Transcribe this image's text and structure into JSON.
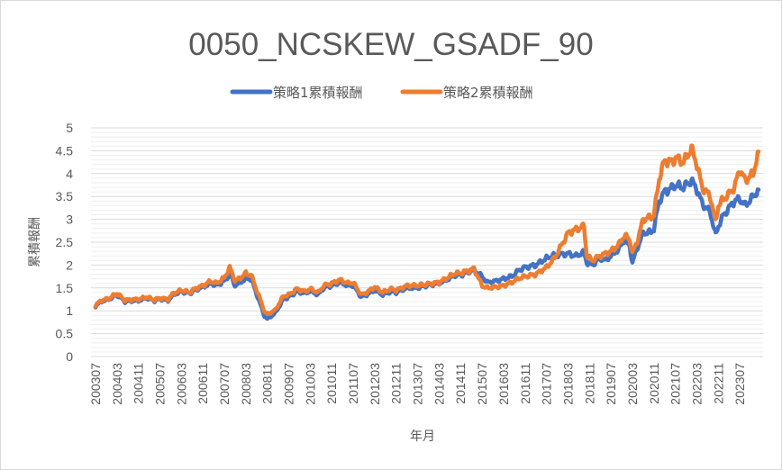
{
  "chart_data": {
    "type": "line",
    "title": "0050_NCSKEW_GSADF_90",
    "xlabel": "年月",
    "ylabel": "累積報酬",
    "ylim": [
      0,
      5
    ],
    "yticks": [
      "0",
      "0.5",
      "1",
      "1.5",
      "2",
      "2.5",
      "3",
      "3.5",
      "4",
      "4.5",
      "5"
    ],
    "xticks": [
      "200307",
      "200403",
      "200411",
      "200507",
      "200603",
      "200611",
      "200707",
      "200803",
      "200811",
      "200907",
      "201003",
      "201011",
      "201107",
      "201203",
      "201211",
      "201307",
      "201403",
      "201411",
      "201507",
      "201603",
      "201611",
      "201707",
      "201803",
      "201811",
      "201907",
      "202003",
      "202011",
      "202107",
      "202203",
      "202211",
      "202307"
    ],
    "x_range": [
      "200307",
      "202402"
    ],
    "grid": true,
    "legend": "top",
    "series": [
      {
        "name": "策略1累積報酬",
        "color": "#4472C4",
        "points": [
          [
            "200307",
            1.1
          ],
          [
            "200309",
            1.2
          ],
          [
            "200312",
            1.25
          ],
          [
            "200403",
            1.35
          ],
          [
            "200406",
            1.2
          ],
          [
            "200409",
            1.22
          ],
          [
            "200411",
            1.22
          ],
          [
            "200502",
            1.28
          ],
          [
            "200505",
            1.22
          ],
          [
            "200507",
            1.26
          ],
          [
            "200510",
            1.22
          ],
          [
            "200512",
            1.35
          ],
          [
            "200603",
            1.42
          ],
          [
            "200606",
            1.38
          ],
          [
            "200608",
            1.45
          ],
          [
            "200611",
            1.52
          ],
          [
            "200702",
            1.6
          ],
          [
            "200704",
            1.55
          ],
          [
            "200707",
            1.65
          ],
          [
            "200709",
            1.8
          ],
          [
            "200711",
            1.55
          ],
          [
            "200801",
            1.62
          ],
          [
            "200803",
            1.7
          ],
          [
            "200805",
            1.7
          ],
          [
            "200808",
            1.2
          ],
          [
            "200810",
            0.88
          ],
          [
            "200811",
            0.82
          ],
          [
            "200902",
            0.95
          ],
          [
            "200905",
            1.25
          ],
          [
            "200907",
            1.3
          ],
          [
            "200910",
            1.42
          ],
          [
            "201001",
            1.38
          ],
          [
            "201003",
            1.43
          ],
          [
            "201006",
            1.35
          ],
          [
            "201008",
            1.5
          ],
          [
            "201011",
            1.55
          ],
          [
            "201102",
            1.62
          ],
          [
            "201105",
            1.55
          ],
          [
            "201107",
            1.55
          ],
          [
            "201110",
            1.3
          ],
          [
            "201112",
            1.35
          ],
          [
            "201203",
            1.45
          ],
          [
            "201206",
            1.35
          ],
          [
            "201209",
            1.42
          ],
          [
            "201211",
            1.4
          ],
          [
            "201303",
            1.5
          ],
          [
            "201307",
            1.5
          ],
          [
            "201310",
            1.55
          ],
          [
            "201403",
            1.6
          ],
          [
            "201406",
            1.68
          ],
          [
            "201409",
            1.78
          ],
          [
            "201411",
            1.78
          ],
          [
            "201502",
            1.85
          ],
          [
            "201504",
            1.9
          ],
          [
            "201507",
            1.75
          ],
          [
            "201509",
            1.62
          ],
          [
            "201512",
            1.65
          ],
          [
            "201603",
            1.7
          ],
          [
            "201606",
            1.75
          ],
          [
            "201609",
            1.9
          ],
          [
            "201611",
            1.95
          ],
          [
            "201703",
            2.0
          ],
          [
            "201707",
            2.15
          ],
          [
            "201710",
            2.22
          ],
          [
            "201803",
            2.25
          ],
          [
            "201806",
            2.2
          ],
          [
            "201809",
            2.28
          ],
          [
            "201810",
            2.05
          ],
          [
            "201812",
            2.0
          ],
          [
            "201903",
            2.15
          ],
          [
            "201905",
            2.1
          ],
          [
            "201907",
            2.2
          ],
          [
            "201910",
            2.35
          ],
          [
            "201912",
            2.55
          ],
          [
            "202002",
            2.4
          ],
          [
            "202003",
            2.05
          ],
          [
            "202005",
            2.4
          ],
          [
            "202007",
            2.7
          ],
          [
            "202010",
            2.72
          ],
          [
            "202011",
            2.8
          ],
          [
            "202101",
            3.4
          ],
          [
            "202103",
            3.6
          ],
          [
            "202106",
            3.7
          ],
          [
            "202107",
            3.75
          ],
          [
            "202110",
            3.7
          ],
          [
            "202201",
            3.85
          ],
          [
            "202203",
            3.65
          ],
          [
            "202205",
            3.35
          ],
          [
            "202208",
            3.15
          ],
          [
            "202210",
            2.65
          ],
          [
            "202211",
            2.85
          ],
          [
            "202301",
            3.1
          ],
          [
            "202303",
            3.25
          ],
          [
            "202305",
            3.4
          ],
          [
            "202307",
            3.45
          ],
          [
            "202309",
            3.3
          ],
          [
            "202312",
            3.5
          ],
          [
            "202402",
            3.65
          ]
        ]
      },
      {
        "name": "策略2累積報酬",
        "color": "#ED7D31",
        "points": [
          [
            "200307",
            1.12
          ],
          [
            "200309",
            1.22
          ],
          [
            "200312",
            1.27
          ],
          [
            "200403",
            1.38
          ],
          [
            "200406",
            1.23
          ],
          [
            "200409",
            1.25
          ],
          [
            "200411",
            1.25
          ],
          [
            "200502",
            1.3
          ],
          [
            "200505",
            1.24
          ],
          [
            "200507",
            1.28
          ],
          [
            "200510",
            1.25
          ],
          [
            "200512",
            1.38
          ],
          [
            "200603",
            1.45
          ],
          [
            "200606",
            1.4
          ],
          [
            "200608",
            1.48
          ],
          [
            "200611",
            1.55
          ],
          [
            "200702",
            1.65
          ],
          [
            "200704",
            1.6
          ],
          [
            "200707",
            1.72
          ],
          [
            "200709",
            1.95
          ],
          [
            "200711",
            1.65
          ],
          [
            "200801",
            1.72
          ],
          [
            "200803",
            1.82
          ],
          [
            "200805",
            1.78
          ],
          [
            "200808",
            1.3
          ],
          [
            "200810",
            0.98
          ],
          [
            "200811",
            0.92
          ],
          [
            "200902",
            1.02
          ],
          [
            "200905",
            1.32
          ],
          [
            "200907",
            1.35
          ],
          [
            "200910",
            1.48
          ],
          [
            "201001",
            1.42
          ],
          [
            "201003",
            1.48
          ],
          [
            "201006",
            1.4
          ],
          [
            "201008",
            1.55
          ],
          [
            "201011",
            1.6
          ],
          [
            "201102",
            1.68
          ],
          [
            "201105",
            1.6
          ],
          [
            "201107",
            1.62
          ],
          [
            "201110",
            1.35
          ],
          [
            "201112",
            1.4
          ],
          [
            "201203",
            1.52
          ],
          [
            "201206",
            1.4
          ],
          [
            "201209",
            1.48
          ],
          [
            "201211",
            1.45
          ],
          [
            "201303",
            1.55
          ],
          [
            "201307",
            1.55
          ],
          [
            "201310",
            1.58
          ],
          [
            "201403",
            1.62
          ],
          [
            "201406",
            1.72
          ],
          [
            "201409",
            1.82
          ],
          [
            "201411",
            1.82
          ],
          [
            "201502",
            1.88
          ],
          [
            "201504",
            1.92
          ],
          [
            "201507",
            1.55
          ],
          [
            "201509",
            1.5
          ],
          [
            "201512",
            1.52
          ],
          [
            "201603",
            1.55
          ],
          [
            "201606",
            1.62
          ],
          [
            "201609",
            1.72
          ],
          [
            "201611",
            1.75
          ],
          [
            "201703",
            1.8
          ],
          [
            "201707",
            1.95
          ],
          [
            "201710",
            2.15
          ],
          [
            "201803",
            2.7
          ],
          [
            "201806",
            2.78
          ],
          [
            "201809",
            2.85
          ],
          [
            "201810",
            2.2
          ],
          [
            "201812",
            2.1
          ],
          [
            "201903",
            2.2
          ],
          [
            "201905",
            2.25
          ],
          [
            "201907",
            2.3
          ],
          [
            "201910",
            2.45
          ],
          [
            "201912",
            2.65
          ],
          [
            "202002",
            2.55
          ],
          [
            "202003",
            2.25
          ],
          [
            "202005",
            2.55
          ],
          [
            "202007",
            3.0
          ],
          [
            "202010",
            3.05
          ],
          [
            "202011",
            3.1
          ],
          [
            "202101",
            3.9
          ],
          [
            "202103",
            4.28
          ],
          [
            "202106",
            4.25
          ],
          [
            "202107",
            4.35
          ],
          [
            "202110",
            4.25
          ],
          [
            "202201",
            4.55
          ],
          [
            "202203",
            4.2
          ],
          [
            "202205",
            3.7
          ],
          [
            "202208",
            3.5
          ],
          [
            "202210",
            2.95
          ],
          [
            "202211",
            3.3
          ],
          [
            "202301",
            3.45
          ],
          [
            "202303",
            3.55
          ],
          [
            "202305",
            3.7
          ],
          [
            "202307",
            4.1
          ],
          [
            "202309",
            3.85
          ],
          [
            "202312",
            4.0
          ],
          [
            "202402",
            4.48
          ]
        ]
      }
    ]
  }
}
